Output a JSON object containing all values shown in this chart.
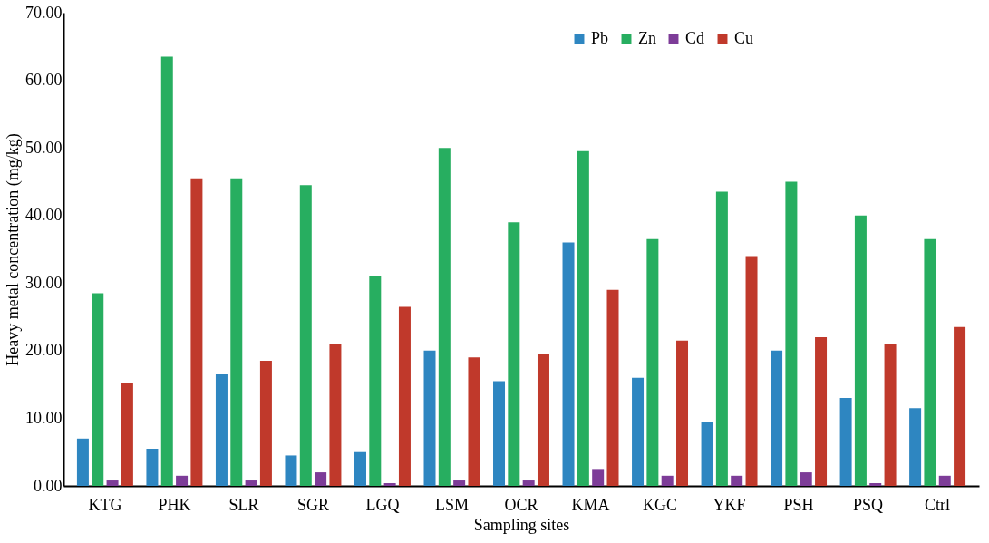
{
  "chart_data": {
    "type": "bar",
    "xlabel": "Sampling sites",
    "ylabel": "Heavy metal concentration (mg/kg)",
    "categories": [
      "KTG",
      "PHK",
      "SLR",
      "SGR",
      "LGQ",
      "LSM",
      "OCR",
      "KMA",
      "KGC",
      "YKF",
      "PSH",
      "PSQ",
      "Ctrl"
    ],
    "series": [
      {
        "name": "Pb",
        "color": "#2e86c1",
        "values": [
          7,
          5.5,
          16.5,
          4.5,
          5,
          20,
          15.5,
          36,
          16,
          9.5,
          20,
          13,
          11.5
        ]
      },
      {
        "name": "Zn",
        "color": "#27ae60",
        "values": [
          28.5,
          63.5,
          45.5,
          44.5,
          31,
          50,
          39,
          49.5,
          36.5,
          43.5,
          45,
          40,
          36.5
        ]
      },
      {
        "name": "Cd",
        "color": "#7d3c98",
        "values": [
          0.8,
          1.5,
          0.8,
          2,
          0.4,
          0.8,
          0.8,
          2.5,
          1.5,
          1.5,
          2,
          0.4,
          1.5
        ]
      },
      {
        "name": "Cu",
        "color": "#c0392b",
        "values": [
          15.2,
          45.5,
          18.5,
          21,
          26.5,
          19,
          19.5,
          29,
          21.5,
          34,
          22,
          21,
          23.5
        ]
      }
    ],
    "ylim": [
      0,
      70
    ],
    "yticks": [
      {
        "value": 0,
        "label": "0.00"
      },
      {
        "value": 10,
        "label": "10.00"
      },
      {
        "value": 20,
        "label": "20.00"
      },
      {
        "value": 30,
        "label": "30.00"
      },
      {
        "value": 40,
        "label": "40.00"
      },
      {
        "value": 50,
        "label": "50.00"
      },
      {
        "value": 60,
        "label": "60.00"
      },
      {
        "value": 70,
        "label": "70.00"
      }
    ],
    "grid": false,
    "legend": "top right"
  }
}
